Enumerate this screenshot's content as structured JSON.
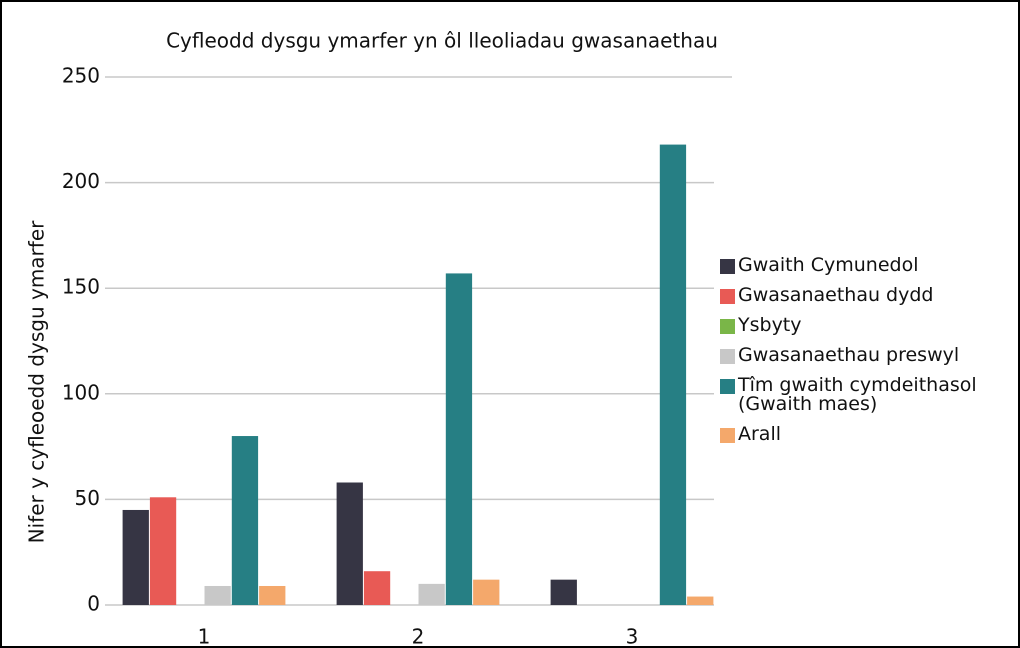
{
  "chart_data": {
    "type": "bar",
    "title": "Cyfleodd dysgu ymarfer yn ôl lleoliadau gwasanaethau",
    "y_label": "Nifer y cyfleoedd  dysgu ymarfer",
    "categories": [
      "1",
      "2",
      "3"
    ],
    "series": [
      {
        "name": "Gwaith Cymunedol",
        "color": "#363544",
        "values": [
          45,
          58,
          12
        ]
      },
      {
        "name": "Gwasanaethau dydd",
        "color": "#e85a55",
        "values": [
          51,
          16,
          0
        ]
      },
      {
        "name": "Ysbyty",
        "color": "#7ab648",
        "values": [
          0,
          0,
          0
        ]
      },
      {
        "name": "Gwasanaethau preswyl",
        "color": "#c8c8c8",
        "values": [
          9,
          10,
          0
        ]
      },
      {
        "name": "Tîm gwaith cymdeithasol (Gwaith maes)",
        "color": "#267f84",
        "values": [
          80,
          157,
          218
        ]
      },
      {
        "name": "Arall",
        "color": "#f4a86b",
        "values": [
          9,
          12,
          4
        ]
      }
    ],
    "ylim": [
      0,
      250
    ],
    "yticks": [
      0,
      50,
      100,
      150,
      200,
      250
    ],
    "grid": true,
    "legend": "right"
  }
}
